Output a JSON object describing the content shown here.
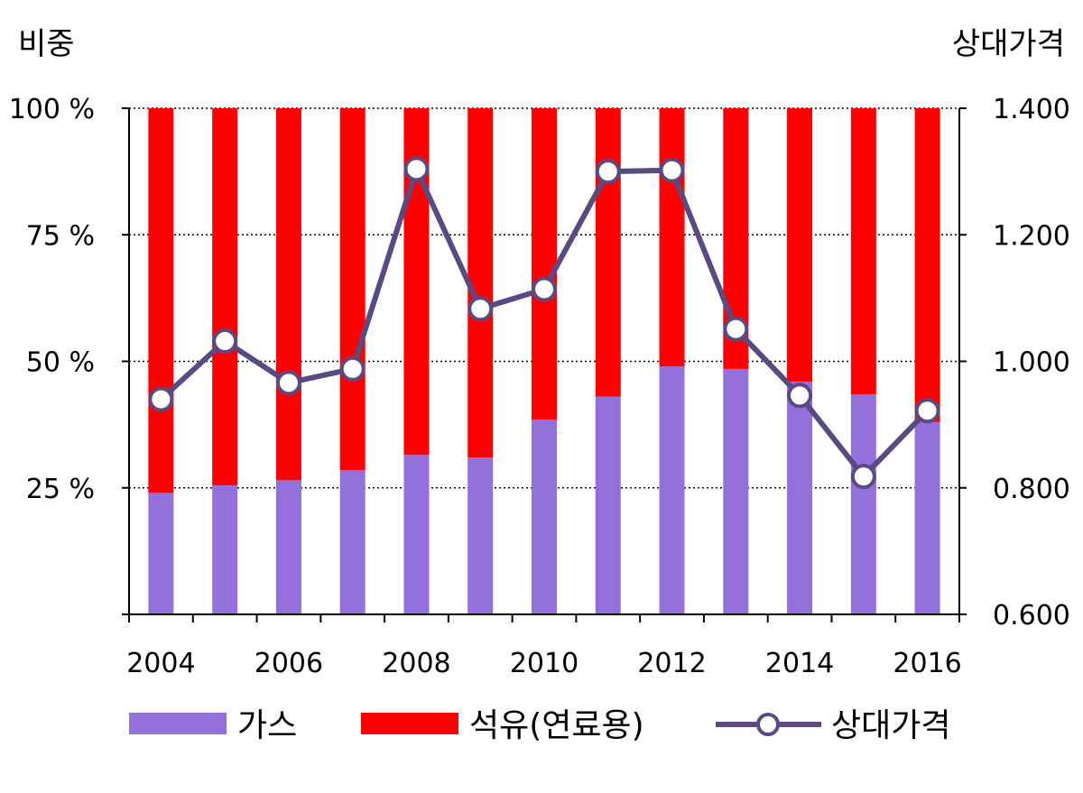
{
  "chart_data": {
    "type": "bar",
    "stacked": true,
    "percent_stacked": true,
    "categories": [
      "2004",
      "2005",
      "2006",
      "2007",
      "2008",
      "2009",
      "2010",
      "2011",
      "2012",
      "2013",
      "2014",
      "2015",
      "2016"
    ],
    "x_tick_labels": [
      "2004",
      "2006",
      "2008",
      "2010",
      "2012",
      "2014",
      "2016"
    ],
    "left_axis": {
      "title": "비중",
      "ylim": [
        0,
        100
      ],
      "ticks": [
        0,
        25,
        50,
        75,
        100
      ],
      "tick_labels": [
        "25 %",
        "50 %",
        "75 %",
        "100 %"
      ]
    },
    "right_axis": {
      "title": "상대가격",
      "ylim": [
        0.6,
        1.4
      ],
      "ticks": [
        0.6,
        0.8,
        1.0,
        1.2,
        1.4
      ],
      "tick_labels": [
        "0.600",
        "0.800",
        "1.000",
        "1.200",
        "1.400"
      ]
    },
    "grid": "horizontal-dotted",
    "legend_position": "bottom",
    "series": [
      {
        "name": "가스",
        "type": "bar",
        "color": "#9370DB",
        "values": [
          24,
          25.5,
          26.5,
          28.5,
          31.5,
          31,
          38.5,
          43,
          49,
          48.5,
          46,
          43.5,
          38
        ]
      },
      {
        "name": "석유(연료용)",
        "type": "bar",
        "color": "#FF0000",
        "values": [
          76,
          74.5,
          73.5,
          71.5,
          68.5,
          69,
          61.5,
          57,
          51,
          51.5,
          54,
          56.5,
          62
        ]
      },
      {
        "name": "상대가격",
        "type": "line",
        "axis": "right",
        "color": "#5B4A82",
        "values": [
          0.94,
          1.032,
          0.966,
          0.988,
          1.304,
          1.083,
          1.114,
          1.3,
          1.302,
          1.051,
          0.946,
          0.818,
          0.922
        ]
      }
    ]
  }
}
